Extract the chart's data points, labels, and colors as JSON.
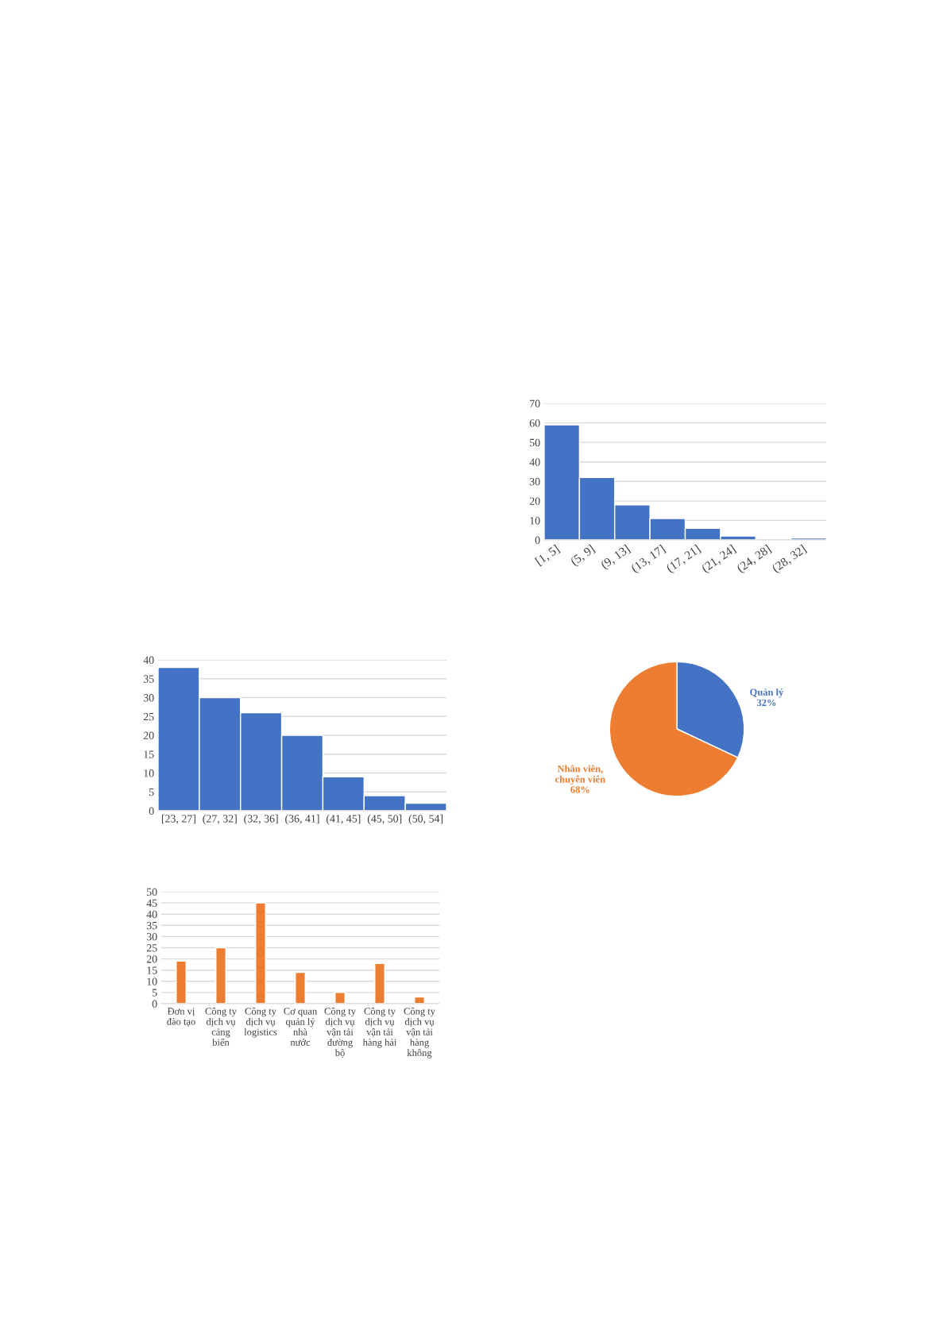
{
  "chart_data": [
    {
      "type": "bar",
      "categories": [
        "[1, 5]",
        "(5, 9]",
        "(9, 13]",
        "(13, 17]",
        "(17, 21]",
        "(21, 24]",
        "(24, 28]",
        "(28, 32]"
      ],
      "values": [
        59,
        32,
        18,
        11,
        6,
        2,
        0,
        1
      ],
      "color": "#4472c4",
      "ylim": [
        0,
        70
      ],
      "yticks": [
        0,
        10,
        20,
        30,
        40,
        50,
        60,
        70
      ],
      "grid": "y"
    },
    {
      "type": "pie",
      "categories": [
        "Quản lý",
        "Nhân viên, chuyên viên"
      ],
      "values": [
        32,
        68
      ],
      "colors": [
        "#4472c4",
        "#ed7d31"
      ],
      "value_labels": [
        "32%",
        "68%"
      ]
    },
    {
      "type": "bar",
      "categories": [
        "[23, 27]",
        "(27, 32]",
        "(32, 36]",
        "(36, 41]",
        "(41, 45]",
        "(45, 50]",
        "(50, 54]"
      ],
      "values": [
        38,
        30,
        26,
        20,
        9,
        4,
        2
      ],
      "color": "#4472c4",
      "ylim": [
        0,
        40
      ],
      "yticks": [
        0,
        5,
        10,
        15,
        20,
        25,
        30,
        35,
        40
      ],
      "grid": "y"
    },
    {
      "type": "bar",
      "categories": [
        "Đơn vị\nđào tạo",
        "Công ty\ndịch vụ\ncảng\nbiển",
        "Công ty\ndịch vụ\nlogistics",
        "Cơ quan\nquản lý\nnhà\nnước",
        "Công ty\ndịch vụ\nvận tải\nđường\nbộ",
        "Công ty\ndịch vụ\nvận tải\nhàng hải",
        "Công ty\ndịch vụ\nvận tải\nhàng\nkhông"
      ],
      "values": [
        19,
        25,
        45,
        14,
        5,
        18,
        3
      ],
      "color": "#ed7d31",
      "ylim": [
        0,
        50
      ],
      "yticks": [
        0,
        5,
        10,
        15,
        20,
        25,
        30,
        35,
        40,
        45,
        50
      ],
      "grid": "y"
    }
  ]
}
